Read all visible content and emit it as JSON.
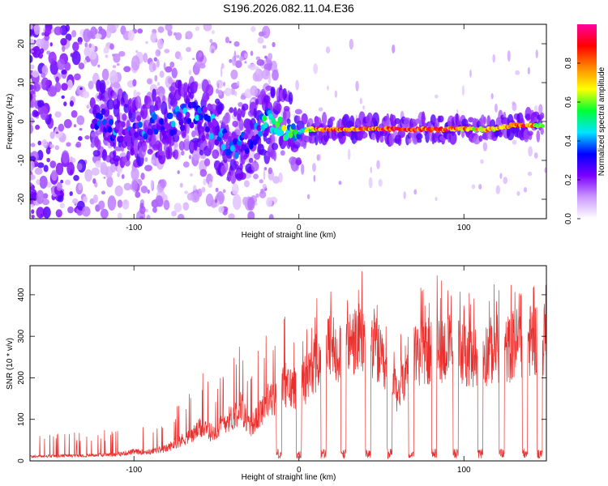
{
  "title": "S196.2026.082.11.04.E36",
  "chart_data": [
    {
      "type": "heatmap",
      "title": "S196.2026.082.11.04.E36",
      "xlabel": "Height of straight line (km)",
      "ylabel": "Frequency (Hz)",
      "xlim": [
        -163,
        150
      ],
      "ylim": [
        -25,
        25
      ],
      "xticks": [
        -100,
        0,
        100
      ],
      "yticks": [
        -20,
        -10,
        0,
        10,
        20
      ],
      "grid": false,
      "colorbar": {
        "label": "Normalized spectral amplitude",
        "range": [
          0.0,
          1.0
        ],
        "ticks": [
          0.0,
          0.2,
          0.4,
          0.6,
          0.8
        ],
        "colors": [
          "#ffffff",
          "#cc99ff",
          "#7a00ff",
          "#0000ff",
          "#00e5ff",
          "#00ff33",
          "#ffff00",
          "#ff8800",
          "#ff0000",
          "#ff00a0"
        ]
      },
      "ridge_frequency_hz": [
        {
          "x": -160,
          "f": 3,
          "a": 0.1
        },
        {
          "x": -150,
          "f": 6,
          "a": 0.12
        },
        {
          "x": -140,
          "f": -2,
          "a": 0.12
        },
        {
          "x": -125,
          "f": 1,
          "a": 0.2
        },
        {
          "x": -118,
          "f": 0,
          "a": 0.3
        },
        {
          "x": -110,
          "f": -2,
          "a": 0.3
        },
        {
          "x": -100,
          "f": -2,
          "a": 0.25
        },
        {
          "x": -90,
          "f": -1,
          "a": 0.3
        },
        {
          "x": -80,
          "f": -1,
          "a": 0.3
        },
        {
          "x": -72,
          "f": 1,
          "a": 0.35
        },
        {
          "x": -64,
          "f": 2,
          "a": 0.35
        },
        {
          "x": -55,
          "f": 0,
          "a": 0.3
        },
        {
          "x": -48,
          "f": -4,
          "a": 0.3
        },
        {
          "x": -40,
          "f": -6,
          "a": 0.3
        },
        {
          "x": -32,
          "f": -5,
          "a": 0.3
        },
        {
          "x": -25,
          "f": -2,
          "a": 0.35
        },
        {
          "x": -18,
          "f": 0,
          "a": 0.5
        },
        {
          "x": -10,
          "f": -1,
          "a": 0.55
        },
        {
          "x": -2,
          "f": -3,
          "a": 0.45
        },
        {
          "x": 5,
          "f": -2,
          "a": 0.6
        },
        {
          "x": 15,
          "f": -2,
          "a": 0.85
        },
        {
          "x": 30,
          "f": -2,
          "a": 0.8
        },
        {
          "x": 45,
          "f": -2,
          "a": 0.8
        },
        {
          "x": 60,
          "f": -2,
          "a": 0.9
        },
        {
          "x": 75,
          "f": -2,
          "a": 0.85
        },
        {
          "x": 90,
          "f": -2,
          "a": 0.85
        },
        {
          "x": 105,
          "f": -2,
          "a": 0.7
        },
        {
          "x": 118,
          "f": -2,
          "a": 0.7
        },
        {
          "x": 128,
          "f": -1,
          "a": 0.8
        },
        {
          "x": 138,
          "f": -1,
          "a": 0.85
        },
        {
          "x": 146,
          "f": -1,
          "a": 0.6
        }
      ]
    },
    {
      "type": "line",
      "xlabel": "Height of straight line (km)",
      "ylabel": "SNR (10 * v/v)",
      "xlim": [
        -163,
        150
      ],
      "ylim": [
        0,
        470
      ],
      "xticks": [
        -100,
        0,
        100
      ],
      "yticks": [
        0,
        100,
        200,
        300,
        400
      ],
      "grid": false,
      "series": [
        {
          "name": "SNR",
          "color": "#e8312f",
          "envelope": {
            "x": [
              -163,
              -150,
              -130,
              -110,
              -100,
              -90,
              -80,
              -70,
              -65,
              -60,
              -55,
              -50,
              -45,
              -40,
              -35,
              -30,
              -25,
              -20,
              -15,
              -10,
              -5,
              0,
              5,
              10,
              15,
              20,
              25,
              30,
              35,
              40,
              45,
              50,
              55,
              60,
              65,
              70,
              75,
              80,
              85,
              90,
              95,
              100,
              105,
              110,
              115,
              120,
              125,
              130,
              135,
              140,
              145,
              150
            ],
            "median": [
              12,
              13,
              15,
              18,
              25,
              25,
              35,
              60,
              70,
              90,
              80,
              80,
              110,
              120,
              150,
              90,
              120,
              160,
              170,
              210,
              200,
              210,
              230,
              270,
              300,
              310,
              310,
              320,
              330,
              330,
              330,
              270,
              200,
              190,
              260,
              300,
              300,
              300,
              310,
              310,
              310,
              300,
              280,
              290,
              300,
              310,
              300,
              320,
              330,
              330,
              340,
              340
            ],
            "peak": [
              60,
              65,
              70,
              80,
              110,
              100,
              120,
              150,
              170,
              250,
              220,
              200,
              230,
              260,
              330,
              240,
              270,
              320,
              300,
              370,
              320,
              340,
              330,
              390,
              400,
              420,
              430,
              440,
              455,
              460,
              440,
              380,
              300,
              320,
              400,
              430,
              430,
              440,
              450,
              440,
              440,
              420,
              400,
              410,
              420,
              430,
              420,
              430,
              440,
              445,
              450,
              450
            ]
          },
          "dropouts_x": [
            -12,
            0,
            15,
            27,
            42,
            55,
            68,
            82,
            95,
            110,
            123,
            137,
            146
          ]
        }
      ]
    }
  ]
}
